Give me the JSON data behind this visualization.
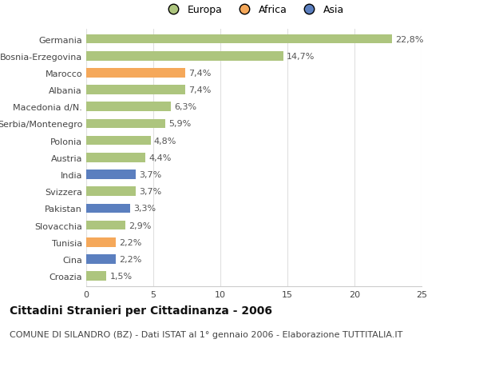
{
  "categories": [
    "Germania",
    "Bosnia-Erzegovina",
    "Marocco",
    "Albania",
    "Macedonia d/N.",
    "Serbia/Montenegro",
    "Polonia",
    "Austria",
    "India",
    "Svizzera",
    "Pakistan",
    "Slovacchia",
    "Tunisia",
    "Cina",
    "Croazia"
  ],
  "values": [
    22.8,
    14.7,
    7.4,
    7.4,
    6.3,
    5.9,
    4.8,
    4.4,
    3.7,
    3.7,
    3.3,
    2.9,
    2.2,
    2.2,
    1.5
  ],
  "continents": [
    "Europa",
    "Europa",
    "Africa",
    "Europa",
    "Europa",
    "Europa",
    "Europa",
    "Europa",
    "Asia",
    "Europa",
    "Asia",
    "Europa",
    "Africa",
    "Asia",
    "Europa"
  ],
  "colors": {
    "Europa": "#adc57e",
    "Africa": "#f5a85a",
    "Asia": "#5b7fbf"
  },
  "title": "Cittadini Stranieri per Cittadinanza - 2006",
  "subtitle": "COMUNE DI SILANDRO (BZ) - Dati ISTAT al 1° gennaio 2006 - Elaborazione TUTTITALIA.IT",
  "xlim": [
    0,
    25
  ],
  "xticks": [
    0,
    5,
    10,
    15,
    20,
    25
  ],
  "background_color": "#ffffff",
  "grid_color": "#e0e0e0",
  "bar_height": 0.55,
  "title_fontsize": 10,
  "subtitle_fontsize": 8,
  "tick_fontsize": 8,
  "value_fontsize": 8,
  "legend_fontsize": 9
}
